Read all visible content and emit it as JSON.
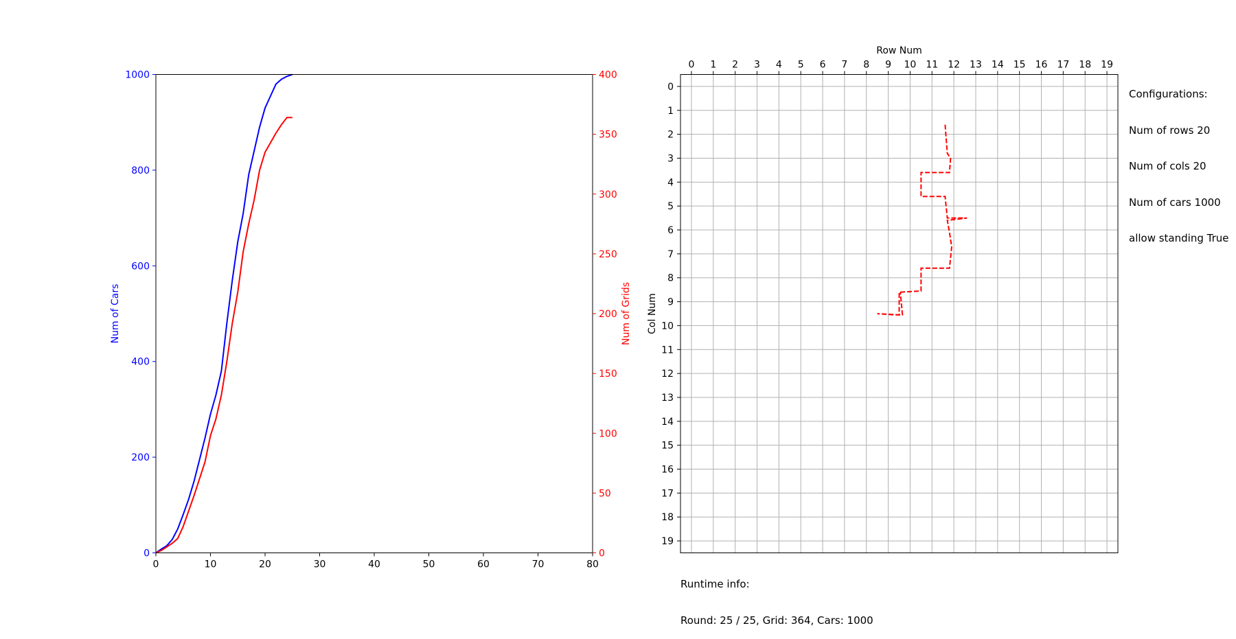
{
  "chart_data": [
    {
      "type": "line",
      "x": [
        0,
        1,
        2,
        3,
        4,
        5,
        6,
        7,
        8,
        9,
        10,
        11,
        12,
        13,
        14,
        15,
        16,
        17,
        18,
        19,
        20,
        21,
        22,
        23,
        24,
        25
      ],
      "xlim": [
        0,
        80
      ],
      "xticks": [
        "0",
        "10",
        "20",
        "30",
        "40",
        "50",
        "60",
        "70",
        "80"
      ],
      "ylabel_left": "Num of Cars",
      "ylim_left": [
        0,
        1000
      ],
      "yticks_left": [
        "0",
        "200",
        "400",
        "600",
        "800",
        "1000"
      ],
      "ylabel_right": "Num of Grids",
      "ylim_right": [
        0,
        400
      ],
      "yticks_right": [
        "0",
        "50",
        "100",
        "150",
        "200",
        "250",
        "300",
        "350",
        "400"
      ],
      "grid": false,
      "series": [
        {
          "axis": "left",
          "color": "#0000ff",
          "x": [
            0,
            1,
            2,
            3,
            4,
            5,
            6,
            7,
            8,
            9,
            10,
            11,
            12,
            13,
            14,
            15,
            16,
            17,
            18,
            19,
            20,
            21,
            22,
            23,
            24,
            25
          ],
          "values": [
            0,
            8,
            15,
            28,
            50,
            80,
            112,
            150,
            195,
            240,
            290,
            330,
            380,
            480,
            570,
            650,
            710,
            790,
            840,
            890,
            930,
            955,
            980,
            990,
            996,
            1000
          ]
        },
        {
          "axis": "right",
          "color": "#ff0000",
          "x": [
            0,
            1,
            2,
            3,
            4,
            5,
            6,
            7,
            8,
            9,
            10,
            11,
            12,
            13,
            14,
            15,
            16,
            17,
            18,
            19,
            20,
            21,
            22,
            23,
            24,
            25
          ],
          "values": [
            0,
            2,
            5,
            8,
            12,
            22,
            35,
            48,
            62,
            76,
            98,
            112,
            132,
            160,
            192,
            218,
            252,
            275,
            295,
            320,
            335,
            343,
            351,
            358,
            364,
            364
          ]
        }
      ]
    },
    {
      "type": "grid-path",
      "title": "Row Num",
      "ylabel": "Col Num",
      "xticks": [
        "0",
        "1",
        "2",
        "3",
        "4",
        "5",
        "6",
        "7",
        "8",
        "9",
        "10",
        "11",
        "12",
        "13",
        "14",
        "15",
        "16",
        "17",
        "18",
        "19"
      ],
      "yticks": [
        "0",
        "1",
        "2",
        "3",
        "4",
        "5",
        "6",
        "7",
        "8",
        "9",
        "10",
        "11",
        "12",
        "13",
        "14",
        "15",
        "16",
        "17",
        "18",
        "19"
      ],
      "xlim": [
        -0.5,
        19.5
      ],
      "ylim": [
        -0.5,
        19.5
      ],
      "grid": true,
      "path_color": "#ff0000",
      "path_style": "dashed",
      "path": [
        [
          11.6,
          1.6
        ],
        [
          11.65,
          2.2
        ],
        [
          11.7,
          2.8
        ],
        [
          11.85,
          3.0
        ],
        [
          11.8,
          3.6
        ],
        [
          10.6,
          3.6
        ],
        [
          10.5,
          3.6
        ],
        [
          10.5,
          4.6
        ],
        [
          11.6,
          4.6
        ],
        [
          11.7,
          5.5
        ],
        [
          12.6,
          5.5
        ],
        [
          11.7,
          5.6
        ],
        [
          11.8,
          6.1
        ],
        [
          11.9,
          6.7
        ],
        [
          11.8,
          7.6
        ],
        [
          10.6,
          7.6
        ],
        [
          10.5,
          7.6
        ],
        [
          10.5,
          8.55
        ],
        [
          9.6,
          8.6
        ],
        [
          9.5,
          8.6
        ],
        [
          9.5,
          9.55
        ],
        [
          8.5,
          9.5
        ],
        [
          9.3,
          9.55
        ],
        [
          9.65,
          9.55
        ],
        [
          9.55,
          8.6
        ]
      ]
    }
  ],
  "config": {
    "lines": [
      "Configurations:",
      "Num of rows 20",
      "Num of cols 20",
      "Num of cars 1000",
      "allow standing True"
    ]
  },
  "runtime": {
    "lines": [
      "Runtime info:",
      "Round: 25 / 25, Grid: 364, Cars: 1000"
    ]
  }
}
